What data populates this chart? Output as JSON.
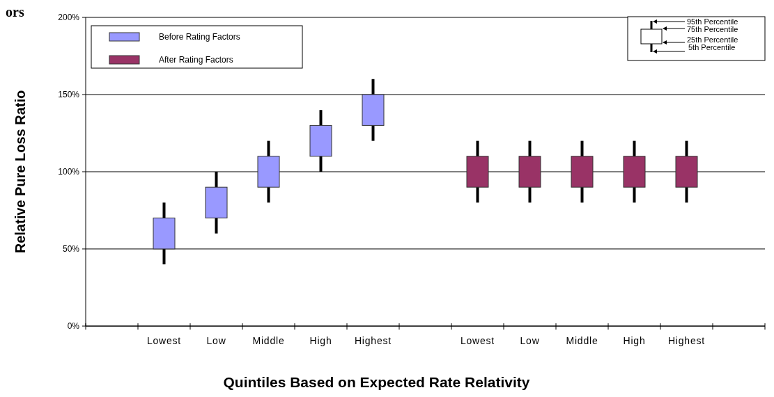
{
  "chart_data": {
    "type": "candlestick",
    "title": "ors",
    "xlabel": "Quintiles Based on Expected Rate Relativity",
    "ylabel": "Relative Pure Loss Ratio",
    "categories": [
      null,
      "Lowest",
      "Low",
      "Middle",
      "High",
      "Highest",
      null,
      "Lowest",
      "Low",
      "Middle",
      "High",
      "Highest",
      null
    ],
    "series": [
      {
        "name": "Before Rating Factors",
        "color": "#9999ff",
        "ohlc": [
          null,
          [
            50,
            80,
            40,
            70
          ],
          [
            70,
            100,
            60,
            90
          ],
          [
            90,
            120,
            80,
            110
          ],
          [
            110,
            140,
            100,
            130
          ],
          [
            130,
            160,
            120,
            150
          ],
          null,
          null,
          null,
          null,
          null,
          null,
          null
        ]
      },
      {
        "name": "After Rating Factors",
        "color": "#993366",
        "ohlc": [
          null,
          null,
          null,
          null,
          null,
          null,
          null,
          [
            90,
            120,
            80,
            110
          ],
          [
            90,
            120,
            80,
            110
          ],
          [
            90,
            120,
            80,
            110
          ],
          [
            90,
            120,
            80,
            110
          ],
          [
            90,
            120,
            80,
            110
          ],
          null
        ]
      }
    ],
    "ylim": [
      0,
      200
    ],
    "yticks": [
      {
        "value": 0,
        "label": "0%"
      },
      {
        "value": 50,
        "label": "50%"
      },
      {
        "value": 100,
        "label": "100%"
      },
      {
        "value": 150,
        "label": "150%"
      },
      {
        "value": 200,
        "label": "200%"
      }
    ],
    "grid": "y",
    "legend": "top left",
    "annotations": [
      "95th Percentile",
      "75th Percentile",
      "25th Percentile",
      "5th Percentile"
    ]
  }
}
